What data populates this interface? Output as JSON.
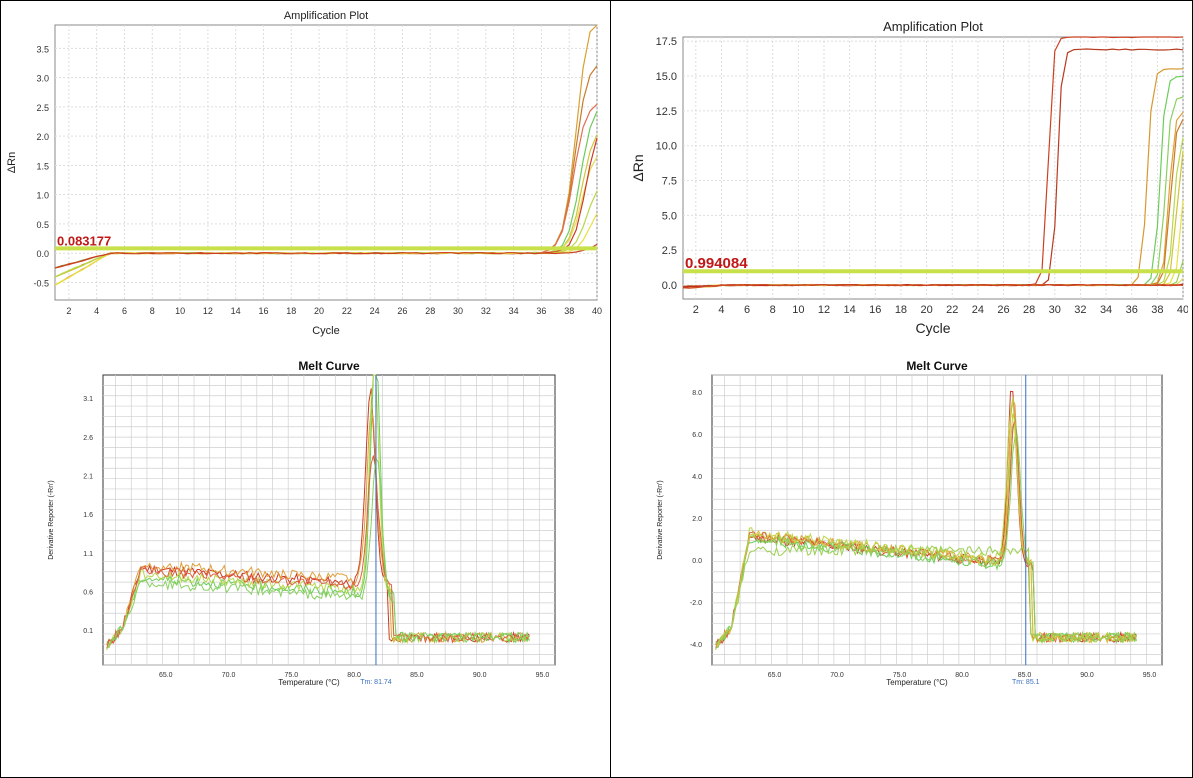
{
  "charts": {
    "amp_left": {
      "title": "Amplification Plot",
      "xlabel": "Cycle",
      "ylabel": "ΔRn",
      "threshold_label": "0.083177"
    },
    "amp_right": {
      "title": "Amplification Plot",
      "xlabel": "Cycle",
      "ylabel": "ΔRn",
      "threshold_label": "0.994084"
    },
    "melt_left": {
      "title": "Melt Curve",
      "xlabel": "Temperature (°C)",
      "ylabel": "Derivative Reporter (-Rn')",
      "tm_label": "Tm: 81.74"
    },
    "melt_right": {
      "title": "Melt Curve",
      "xlabel": "Temperature (°C)",
      "ylabel": "Derivative Reporter (-Rn')",
      "tm_label": "Tm: 85.1"
    }
  },
  "chart_data": [
    {
      "type": "line",
      "title": "Amplification Plot",
      "xlabel": "Cycle",
      "ylabel": "ΔRn",
      "xlim": [
        1,
        40
      ],
      "ylim": [
        -0.8,
        3.9
      ],
      "xticks": [
        2,
        4,
        6,
        8,
        10,
        12,
        14,
        16,
        18,
        20,
        22,
        24,
        26,
        28,
        30,
        32,
        34,
        36,
        38,
        40
      ],
      "yticks": [
        -0.5,
        0.0,
        0.5,
        1.0,
        1.5,
        2.0,
        2.5,
        3.0,
        3.5
      ],
      "ytick_labels": [
        "-0.5",
        "0.0",
        "0.5",
        "1.0",
        "1.5",
        "2.0",
        "2.5",
        "3.0",
        "3.5"
      ],
      "grid": true,
      "threshold": 0.083177,
      "threshold_color": "#c8e04a",
      "colors": [
        "#d9a030",
        "#c87a28",
        "#e07050",
        "#6ccc5a",
        "#d0c43a",
        "#e2dc5a",
        "#cc3a22",
        "#b8d848",
        "#e8e040",
        "#cc4020"
      ],
      "curve_params": [
        {
          "A": 4.2,
          "c": 38.5,
          "k": 0.9
        },
        {
          "A": 3.3,
          "c": 38.4,
          "k": 0.9
        },
        {
          "A": 2.6,
          "c": 38.3,
          "k": 0.9
        },
        {
          "A": 2.6,
          "c": 38.8,
          "k": 0.9
        },
        {
          "A": 2.2,
          "c": 38.9,
          "k": 0.9
        },
        {
          "A": 1.8,
          "c": 38.9,
          "k": 0.9
        },
        {
          "A": 2.3,
          "c": 39.2,
          "k": 0.9
        },
        {
          "A": 1.3,
          "c": 39.3,
          "k": 0.9
        },
        {
          "A": 0.9,
          "c": 39.5,
          "k": 0.9
        },
        {
          "A": 0.2,
          "c": 39.6,
          "k": 0.9
        }
      ]
    },
    {
      "type": "line",
      "title": "Amplification Plot",
      "xlabel": "Cycle",
      "ylabel": "ΔRn",
      "xlim": [
        1,
        40
      ],
      "ylim": [
        -1.0,
        17.8
      ],
      "xticks": [
        2,
        4,
        6,
        8,
        10,
        12,
        14,
        16,
        18,
        20,
        22,
        24,
        26,
        28,
        30,
        32,
        34,
        36,
        38,
        40
      ],
      "yticks": [
        0,
        2.5,
        5.0,
        7.5,
        10.0,
        12.5,
        15.0,
        17.5
      ],
      "ytick_labels": [
        "0.0",
        "2.5",
        "5.0",
        "7.5",
        "10.0",
        "12.5",
        "15.0",
        "17.5"
      ],
      "grid": true,
      "threshold": 0.994084,
      "threshold_color": "#c8e04a",
      "colors": [
        "#cc4020",
        "#b83a20",
        "#d8982e",
        "#6ccc5a",
        "#88d060",
        "#e0a038",
        "#c87a28",
        "#b8d848",
        "#d0c43a",
        "#e8e040",
        "#9ad050",
        "#e2dc5a",
        "#cc3a22",
        "#c02818",
        "#d04a2a"
      ],
      "curve_params": [
        {
          "A": 17.8,
          "c": 29.5,
          "k": 0.36
        },
        {
          "A": 16.9,
          "c": 30.2,
          "k": 0.36
        },
        {
          "A": 15.5,
          "c": 37.2,
          "k": 0.42
        },
        {
          "A": 15.0,
          "c": 38.2,
          "k": 0.42
        },
        {
          "A": 13.5,
          "c": 38.6,
          "k": 0.42
        },
        {
          "A": 12.5,
          "c": 38.9,
          "k": 0.42
        },
        {
          "A": 12.0,
          "c": 39.0,
          "k": 0.42
        },
        {
          "A": 11.0,
          "c": 39.3,
          "k": 0.42
        },
        {
          "A": 10.5,
          "c": 39.5,
          "k": 0.42
        },
        {
          "A": 9.8,
          "c": 39.9,
          "k": 0.42
        },
        {
          "A": 9.0,
          "c": 40.3,
          "k": 0.42
        },
        {
          "A": 8.0,
          "c": 40.6,
          "k": 0.42
        },
        {
          "A": 7.5,
          "c": 40.9,
          "k": 0.42
        },
        {
          "A": 0.0,
          "c": 40.0,
          "k": 0.42
        },
        {
          "A": 0.0,
          "c": 40.0,
          "k": 0.42
        }
      ]
    },
    {
      "type": "line",
      "title": "Melt Curve",
      "xlabel": "Temperature (°C)",
      "ylabel": "Derivative Reporter (-Rn')",
      "xlim": [
        60,
        96
      ],
      "ylim": [
        -0.35,
        3.4
      ],
      "xticks": [
        65,
        70,
        75,
        80,
        85,
        90,
        95
      ],
      "xtick_labels": [
        "65.0",
        "70.0",
        "75.0",
        "80.0",
        "85.0",
        "90.0",
        "95.0"
      ],
      "yticks": [
        0.1,
        0.6,
        1.1,
        1.6,
        2.1,
        2.6,
        3.1
      ],
      "ytick_labels": [
        "0.1",
        "0.6",
        "1.1",
        "1.6",
        "2.1",
        "2.6",
        "3.1"
      ],
      "grid": true,
      "tm": 81.74,
      "colors": [
        "#cc3a22",
        "#e0a038",
        "#6ccc5a",
        "#b8d848",
        "#e06040",
        "#88d060"
      ],
      "curve_params": [
        {
          "plateau": 0.9,
          "slope": 0.012,
          "peak": 2.5,
          "peak_x": 81.3,
          "width": 0.55
        },
        {
          "plateau": 0.95,
          "slope": 0.012,
          "peak": 2.2,
          "peak_x": 81.4,
          "width": 0.55
        },
        {
          "plateau": 0.78,
          "slope": 0.012,
          "peak": 3.3,
          "peak_x": 81.7,
          "width": 0.5
        },
        {
          "plateau": 0.82,
          "slope": 0.012,
          "peak": 3.1,
          "peak_x": 81.6,
          "width": 0.5
        },
        {
          "plateau": 0.87,
          "slope": 0.012,
          "peak": 1.7,
          "peak_x": 81.5,
          "width": 0.6
        },
        {
          "plateau": 0.72,
          "slope": 0.012,
          "peak": 1.9,
          "peak_x": 81.8,
          "width": 0.55
        }
      ]
    },
    {
      "type": "line",
      "title": "Melt Curve",
      "xlabel": "Temperature (°C)",
      "ylabel": "Derivative Reporter (-Rn')",
      "xlim": [
        60,
        96
      ],
      "ylim": [
        -5.0,
        8.8
      ],
      "xticks": [
        65,
        70,
        75,
        80,
        85,
        90,
        95
      ],
      "xtick_labels": [
        "65.0",
        "70.0",
        "75.0",
        "80.0",
        "85.0",
        "90.0",
        "95.0"
      ],
      "yticks": [
        -4,
        -2,
        0,
        2,
        4,
        6,
        8
      ],
      "ytick_labels": [
        "-4.0",
        "-2.0",
        "0.0",
        "2.0",
        "4.0",
        "6.0",
        "8.0"
      ],
      "grid": true,
      "tm": 85.1,
      "colors": [
        "#cc3a22",
        "#e0a038",
        "#6ccc5a",
        "#b8d848",
        "#e06040",
        "#88d060",
        "#d0c43a",
        "#9ad050"
      ],
      "curve_params": [
        {
          "plateau": 1.1,
          "slope": 0.018,
          "peak": 8.5,
          "peak_x": 84.0,
          "width": 0.5
        },
        {
          "plateau": 1.2,
          "slope": 0.018,
          "peak": 8.0,
          "peak_x": 84.1,
          "width": 0.5
        },
        {
          "plateau": 1.0,
          "slope": 0.018,
          "peak": 7.2,
          "peak_x": 84.2,
          "width": 0.5
        },
        {
          "plateau": 1.3,
          "slope": 0.018,
          "peak": 7.6,
          "peak_x": 84.0,
          "width": 0.55
        },
        {
          "plateau": 1.15,
          "slope": 0.018,
          "peak": 6.8,
          "peak_x": 84.2,
          "width": 0.5
        },
        {
          "plateau": 1.05,
          "slope": 0.018,
          "peak": 6.3,
          "peak_x": 84.3,
          "width": 0.55
        },
        {
          "plateau": 1.2,
          "slope": 0.018,
          "peak": 7.0,
          "peak_x": 84.1,
          "width": 0.5
        },
        {
          "plateau": 0.45,
          "slope": 0.0,
          "peak": 0.0,
          "peak_x": 84.0,
          "width": 0.5
        }
      ]
    }
  ]
}
